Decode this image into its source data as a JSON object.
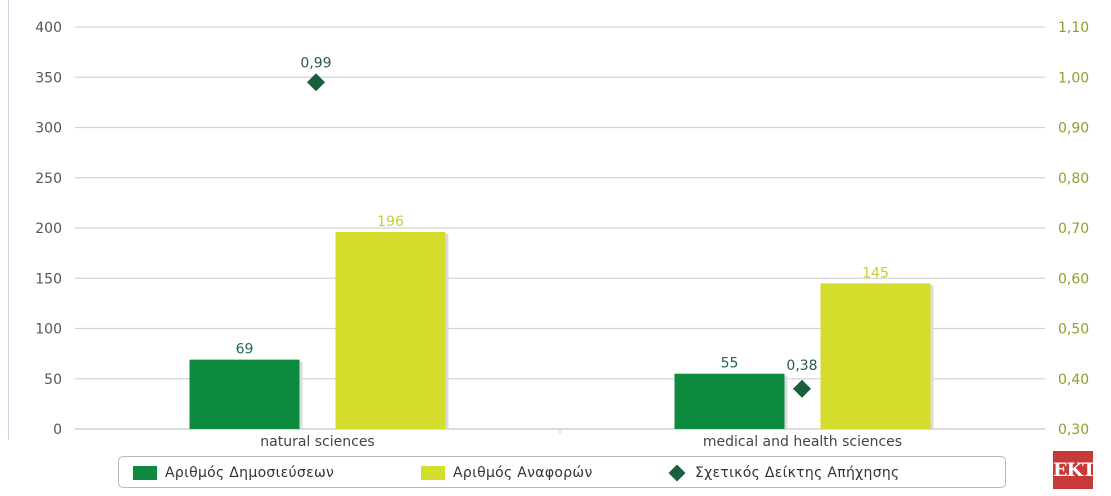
{
  "chart_data": {
    "type": "bar",
    "categories": [
      "natural sciences",
      "medical and health sciences"
    ],
    "series": [
      {
        "name": "Αριθμός Δημοσιεύσεων",
        "type": "bar",
        "axis": "left",
        "color": "#0e8a3e",
        "values": [
          69,
          55
        ],
        "labels": [
          "69",
          "55"
        ]
      },
      {
        "name": "Αριθμός Αναφορών",
        "type": "bar",
        "axis": "left",
        "color": "#d4dc2c",
        "values": [
          196,
          145
        ],
        "labels": [
          "196",
          "145"
        ]
      },
      {
        "name": "Σχετικός Δείκτης Απήχησης",
        "type": "scatter",
        "marker": "diamond",
        "axis": "right",
        "color": "#1b5e3b",
        "values": [
          0.99,
          0.38
        ],
        "labels": [
          "0,99",
          "0,38"
        ]
      }
    ],
    "y_left": {
      "range": [
        0,
        400
      ],
      "ticks": [
        "0",
        "50",
        "100",
        "150",
        "200",
        "250",
        "300",
        "350",
        "400"
      ]
    },
    "y_right": {
      "range": [
        0.3,
        1.1
      ],
      "ticks": [
        "0,30",
        "0,40",
        "0,50",
        "0,60",
        "0,70",
        "0,80",
        "0,90",
        "1,00",
        "1,10"
      ],
      "color": "#8aa32a"
    },
    "grid": true,
    "legend_placement": "bottom"
  },
  "logo_text": "EKT"
}
